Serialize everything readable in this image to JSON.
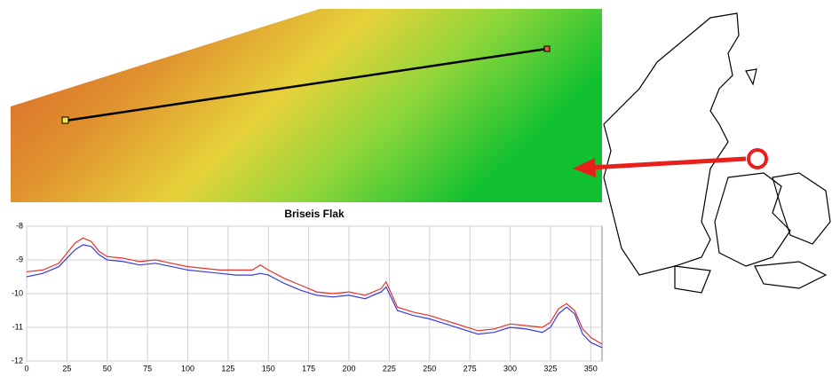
{
  "chart_data": {
    "type": "line",
    "title": "Briseis Flak",
    "x": [
      0,
      10,
      20,
      25,
      30,
      35,
      40,
      45,
      50,
      60,
      70,
      80,
      90,
      100,
      110,
      120,
      130,
      140,
      145,
      150,
      160,
      170,
      180,
      190,
      200,
      210,
      220,
      223,
      230,
      240,
      250,
      260,
      270,
      280,
      290,
      300,
      310,
      320,
      325,
      330,
      335,
      340,
      345,
      350,
      357
    ],
    "series": [
      {
        "name": "red",
        "color": "#e8312a",
        "values": [
          -9.35,
          -9.3,
          -9.1,
          -8.8,
          -8.5,
          -8.35,
          -8.45,
          -8.75,
          -8.9,
          -8.95,
          -9.05,
          -9.0,
          -9.1,
          -9.2,
          -9.25,
          -9.3,
          -9.3,
          -9.3,
          -9.15,
          -9.3,
          -9.55,
          -9.75,
          -9.95,
          -10.0,
          -9.95,
          -10.05,
          -9.85,
          -9.65,
          -10.4,
          -10.55,
          -10.65,
          -10.8,
          -10.95,
          -11.1,
          -11.05,
          -10.9,
          -10.95,
          -11.0,
          -10.85,
          -10.45,
          -10.3,
          -10.5,
          -11.05,
          -11.3,
          -11.5
        ]
      },
      {
        "name": "blue",
        "color": "#3a3ae0",
        "values": [
          -9.5,
          -9.4,
          -9.2,
          -8.95,
          -8.7,
          -8.55,
          -8.6,
          -8.85,
          -9.0,
          -9.05,
          -9.15,
          -9.1,
          -9.2,
          -9.3,
          -9.35,
          -9.4,
          -9.45,
          -9.45,
          -9.4,
          -9.45,
          -9.7,
          -9.9,
          -10.05,
          -10.1,
          -10.05,
          -10.15,
          -9.95,
          -9.8,
          -10.5,
          -10.65,
          -10.75,
          -10.9,
          -11.05,
          -11.2,
          -11.15,
          -11.0,
          -11.05,
          -11.15,
          -11.0,
          -10.6,
          -10.4,
          -10.6,
          -11.2,
          -11.45,
          -11.6
        ]
      }
    ],
    "xlim": [
      0,
      357
    ],
    "xticks": [
      0,
      25,
      50,
      75,
      100,
      125,
      150,
      175,
      200,
      225,
      250,
      275,
      300,
      325,
      350
    ],
    "ylim": [
      -12,
      -8
    ],
    "yticks": [
      -8,
      -9,
      -10,
      -11,
      -12
    ],
    "grid": true
  }
}
